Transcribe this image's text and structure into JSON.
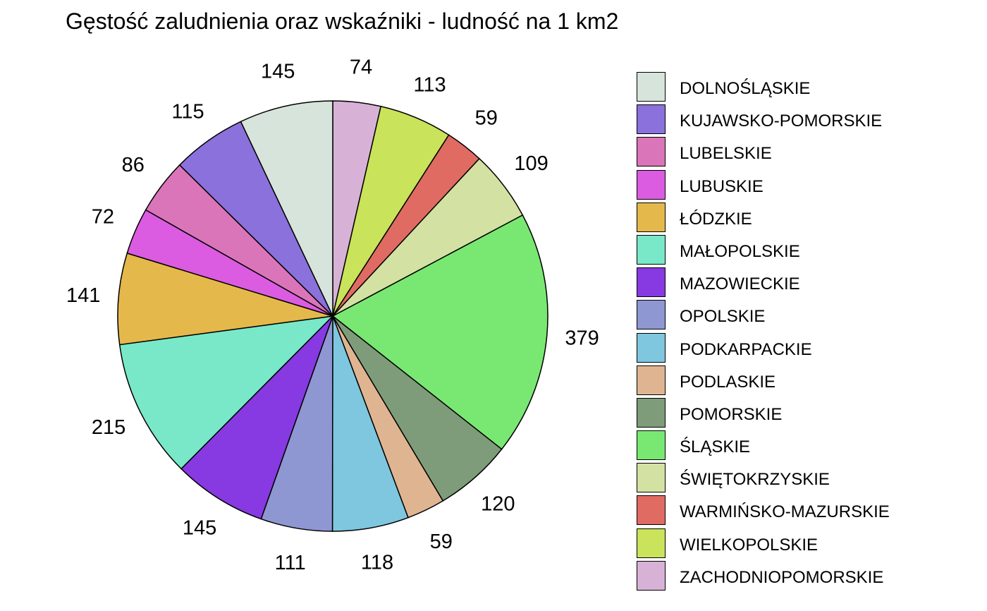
{
  "chart_data": {
    "type": "pie",
    "title": "Gęstość zaludnienia oraz wskaźniki - ludność na 1 km2",
    "legend_position": "right",
    "start": "top",
    "direction": "clockwise",
    "categories": [
      "ZACHODNIOPOMORSKIE",
      "WIELKOPOLSKIE",
      "WARMIŃSKO-MAZURSKIE",
      "ŚWIĘTOKRZYSKIE",
      "ŚLĄSKIE",
      "POMORSKIE",
      "PODLASKIE",
      "PODKARPACKIE",
      "OPOLSKIE",
      "MAZOWIECKIE",
      "MAŁOPOLSKIE",
      "ŁÓDZKIE",
      "LUBUSKIE",
      "LUBELSKIE",
      "KUJAWSKO-POMORSKIE",
      "DOLNOŚLĄSKIE"
    ],
    "values": [
      74,
      113,
      59,
      109,
      379,
      120,
      59,
      118,
      111,
      145,
      215,
      141,
      72,
      86,
      115,
      145
    ],
    "colors": [
      "#d8b2d6",
      "#c9e35a",
      "#e06b62",
      "#d3e2a3",
      "#79e872",
      "#7e9c7a",
      "#dfb591",
      "#7ec7de",
      "#8e97d1",
      "#8739e2",
      "#78e8c8",
      "#e5b84b",
      "#db5ce0",
      "#db75ba",
      "#8a71dc",
      "#d7e4dc"
    ],
    "legend": [
      "DOLNOŚLĄSKIE",
      "KUJAWSKO-POMORSKIE",
      "LUBELSKIE",
      "LUBUSKIE",
      "ŁÓDZKIE",
      "MAŁOPOLSKIE",
      "MAZOWIECKIE",
      "OPOLSKIE",
      "PODKARPACKIE",
      "PODLASKIE",
      "POMORSKIE",
      "ŚLĄSKIE",
      "ŚWIĘTOKRZYSKIE",
      "WARMIŃSKO-MAZURSKIE",
      "WIELKOPOLSKIE",
      "ZACHODNIOPOMORSKIE"
    ],
    "legend_colors": [
      "#d7e4dc",
      "#8a71dc",
      "#db75ba",
      "#db5ce0",
      "#e5b84b",
      "#78e8c8",
      "#8739e2",
      "#8e97d1",
      "#7ec7de",
      "#dfb591",
      "#7e9c7a",
      "#79e872",
      "#d3e2a3",
      "#e06b62",
      "#c9e35a",
      "#d8b2d6"
    ]
  }
}
